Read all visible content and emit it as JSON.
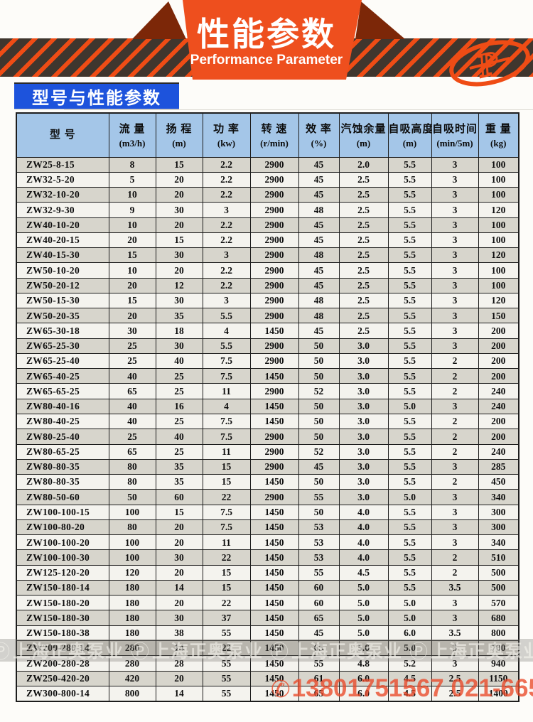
{
  "banner": {
    "title": "性能参数",
    "subtitle": "Performance Parameter"
  },
  "section": {
    "label": "型号与性能参数"
  },
  "table": {
    "columns": [
      {
        "label": "型  号",
        "unit": ""
      },
      {
        "label": "流 量",
        "unit": "(m3/h)"
      },
      {
        "label": "扬 程",
        "unit": "(m)"
      },
      {
        "label": "功 率",
        "unit": "(kw)"
      },
      {
        "label": "转 速",
        "unit": "(r/min)"
      },
      {
        "label": "效 率",
        "unit": "(%)"
      },
      {
        "label": "汽蚀余量",
        "unit": "(m)"
      },
      {
        "label": "自吸高度",
        "unit": "(m)"
      },
      {
        "label": "自吸时间",
        "unit": "(min/5m)"
      },
      {
        "label": "重 量",
        "unit": "(kg)"
      }
    ],
    "rows": [
      [
        "ZW25-8-15",
        "8",
        "15",
        "2.2",
        "2900",
        "45",
        "2.0",
        "5.5",
        "3",
        "100"
      ],
      [
        "ZW32-5-20",
        "5",
        "20",
        "2.2",
        "2900",
        "45",
        "2.5",
        "5.5",
        "3",
        "100"
      ],
      [
        "ZW32-10-20",
        "10",
        "20",
        "2.2",
        "2900",
        "45",
        "2.5",
        "5.5",
        "3",
        "100"
      ],
      [
        "ZW32-9-30",
        "9",
        "30",
        "3",
        "2900",
        "48",
        "2.5",
        "5.5",
        "3",
        "120"
      ],
      [
        "ZW40-10-20",
        "10",
        "20",
        "2.2",
        "2900",
        "45",
        "2.5",
        "5.5",
        "3",
        "100"
      ],
      [
        "ZW40-20-15",
        "20",
        "15",
        "2.2",
        "2900",
        "45",
        "2.5",
        "5.5",
        "3",
        "100"
      ],
      [
        "ZW40-15-30",
        "15",
        "30",
        "3",
        "2900",
        "48",
        "2.5",
        "5.5",
        "3",
        "120"
      ],
      [
        "ZW50-10-20",
        "10",
        "20",
        "2.2",
        "2900",
        "45",
        "2.5",
        "5.5",
        "3",
        "100"
      ],
      [
        "ZW50-20-12",
        "20",
        "12",
        "2.2",
        "2900",
        "45",
        "2.5",
        "5.5",
        "3",
        "100"
      ],
      [
        "ZW50-15-30",
        "15",
        "30",
        "3",
        "2900",
        "48",
        "2.5",
        "5.5",
        "3",
        "120"
      ],
      [
        "ZW50-20-35",
        "20",
        "35",
        "5.5",
        "2900",
        "48",
        "2.5",
        "5.5",
        "3",
        "150"
      ],
      [
        "ZW65-30-18",
        "30",
        "18",
        "4",
        "1450",
        "45",
        "2.5",
        "5.5",
        "3",
        "200"
      ],
      [
        "ZW65-25-30",
        "25",
        "30",
        "5.5",
        "2900",
        "50",
        "3.0",
        "5.5",
        "3",
        "200"
      ],
      [
        "ZW65-25-40",
        "25",
        "40",
        "7.5",
        "2900",
        "50",
        "3.0",
        "5.5",
        "2",
        "200"
      ],
      [
        "ZW65-40-25",
        "40",
        "25",
        "7.5",
        "1450",
        "50",
        "3.0",
        "5.5",
        "2",
        "200"
      ],
      [
        "ZW65-65-25",
        "65",
        "25",
        "11",
        "2900",
        "52",
        "3.0",
        "5.5",
        "2",
        "240"
      ],
      [
        "ZW80-40-16",
        "40",
        "16",
        "4",
        "1450",
        "50",
        "3.0",
        "5.0",
        "3",
        "240"
      ],
      [
        "ZW80-40-25",
        "40",
        "25",
        "7.5",
        "1450",
        "50",
        "3.0",
        "5.5",
        "2",
        "200"
      ],
      [
        "ZW80-25-40",
        "25",
        "40",
        "7.5",
        "2900",
        "50",
        "3.0",
        "5.5",
        "2",
        "200"
      ],
      [
        "ZW80-65-25",
        "65",
        "25",
        "11",
        "2900",
        "52",
        "3.0",
        "5.5",
        "2",
        "240"
      ],
      [
        "ZW80-80-35",
        "80",
        "35",
        "15",
        "2900",
        "45",
        "3.0",
        "5.5",
        "3",
        "285"
      ],
      [
        "ZW80-80-35",
        "80",
        "35",
        "15",
        "1450",
        "50",
        "3.0",
        "5.5",
        "2",
        "450"
      ],
      [
        "ZW80-50-60",
        "50",
        "60",
        "22",
        "2900",
        "55",
        "3.0",
        "5.0",
        "3",
        "340"
      ],
      [
        "ZW100-100-15",
        "100",
        "15",
        "7.5",
        "1450",
        "50",
        "4.0",
        "5.5",
        "3",
        "300"
      ],
      [
        "ZW100-80-20",
        "80",
        "20",
        "7.5",
        "1450",
        "53",
        "4.0",
        "5.5",
        "3",
        "300"
      ],
      [
        "ZW100-100-20",
        "100",
        "20",
        "11",
        "1450",
        "53",
        "4.0",
        "5.5",
        "3",
        "340"
      ],
      [
        "ZW100-100-30",
        "100",
        "30",
        "22",
        "1450",
        "53",
        "4.0",
        "5.5",
        "2",
        "510"
      ],
      [
        "ZW125-120-20",
        "120",
        "20",
        "15",
        "1450",
        "55",
        "4.5",
        "5.5",
        "2",
        "500"
      ],
      [
        "ZW150-180-14",
        "180",
        "14",
        "15",
        "1450",
        "60",
        "5.0",
        "5.5",
        "3.5",
        "500"
      ],
      [
        "ZW150-180-20",
        "180",
        "20",
        "22",
        "1450",
        "60",
        "5.0",
        "5.0",
        "3",
        "570"
      ],
      [
        "ZW150-180-30",
        "180",
        "30",
        "37",
        "1450",
        "65",
        "5.0",
        "5.0",
        "3",
        "680"
      ],
      [
        "ZW150-180-38",
        "180",
        "38",
        "55",
        "1450",
        "45",
        "5.0",
        "6.0",
        "3.5",
        "800"
      ],
      [
        "ZW200-280-14",
        "280",
        "14",
        "22",
        "1450",
        "65",
        "5.0",
        "5.0",
        "3",
        "700"
      ],
      [
        "ZW200-280-28",
        "280",
        "28",
        "55",
        "1450",
        "55",
        "4.8",
        "5.2",
        "3",
        "940"
      ],
      [
        "ZW250-420-20",
        "420",
        "20",
        "55",
        "1450",
        "61",
        "6.0",
        "4.5",
        "2.5",
        "1150"
      ],
      [
        "ZW300-800-14",
        "800",
        "14",
        "55",
        "1450",
        "65",
        "6.0",
        "4.5",
        "2.5",
        "1400"
      ]
    ]
  },
  "watermark": {
    "brand": "上海正奥泵业",
    "logo_glyph": "Ⓟ",
    "repeat": 4,
    "phone": "13801751567 021-66525777",
    "phone_icon": "✆"
  },
  "colors": {
    "accent_orange": "#ee4f1e",
    "maroon": "#7c2708",
    "band_dark": "#3f362e",
    "stripe_orange": "#ef4c15",
    "label_blue": "#1d53dc",
    "header_blue": "#a4c6e8",
    "row_gray": "#d7d5cc",
    "row_light": "#f4f3ee",
    "watermark_red": "#e94828"
  }
}
